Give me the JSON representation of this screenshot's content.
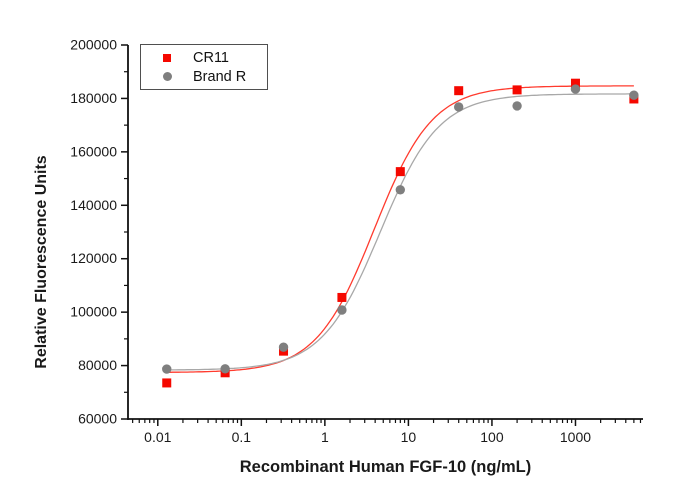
{
  "figure": {
    "background": "#ffffff",
    "axis_color": "#111111",
    "text_color": "#1a1a1a"
  },
  "chart_data": {
    "type": "scatter",
    "title": "",
    "xlabel": "Recombinant Human FGF-10 (ng/mL)",
    "ylabel": "Relative Fluorescence Units",
    "x_scale": "log",
    "grid": false,
    "legend_position": "top-left",
    "xlim": [
      0.0044,
      6430
    ],
    "ylim": [
      60000,
      200000
    ],
    "x_major_ticks": [
      0.01,
      0.1,
      1,
      10,
      100,
      1000
    ],
    "x_tick_labels": [
      "0.01",
      "0.1",
      "1",
      "10",
      "100",
      "1000"
    ],
    "y_major_step": 20000,
    "y_minor_step": 10000,
    "y_tick_labels": [
      "60000",
      "80000",
      "100000",
      "120000",
      "140000",
      "160000",
      "180000",
      "200000"
    ],
    "x": [
      0.0128,
      0.064,
      0.32,
      1.6,
      8,
      40,
      200,
      1000,
      5000
    ],
    "series": [
      {
        "name": "CR11",
        "marker": "square",
        "color": "#f50800",
        "line_color": "#ff3b2e",
        "values": [
          73500,
          77300,
          85400,
          105500,
          152600,
          182900,
          183200,
          185700,
          179800
        ],
        "fit": {
          "bottom": 77400,
          "top": 184700,
          "ec50": 3.9,
          "hill": 1.25
        }
      },
      {
        "name": "Brand R",
        "marker": "circle",
        "color": "#7f7f7f",
        "line_color": "#a8a8a8",
        "values": [
          78700,
          78800,
          86900,
          100800,
          145800,
          176800,
          177200,
          183500,
          181200
        ],
        "fit": {
          "bottom": 78300,
          "top": 181700,
          "ec50": 4.6,
          "hill": 1.24
        }
      }
    ]
  }
}
